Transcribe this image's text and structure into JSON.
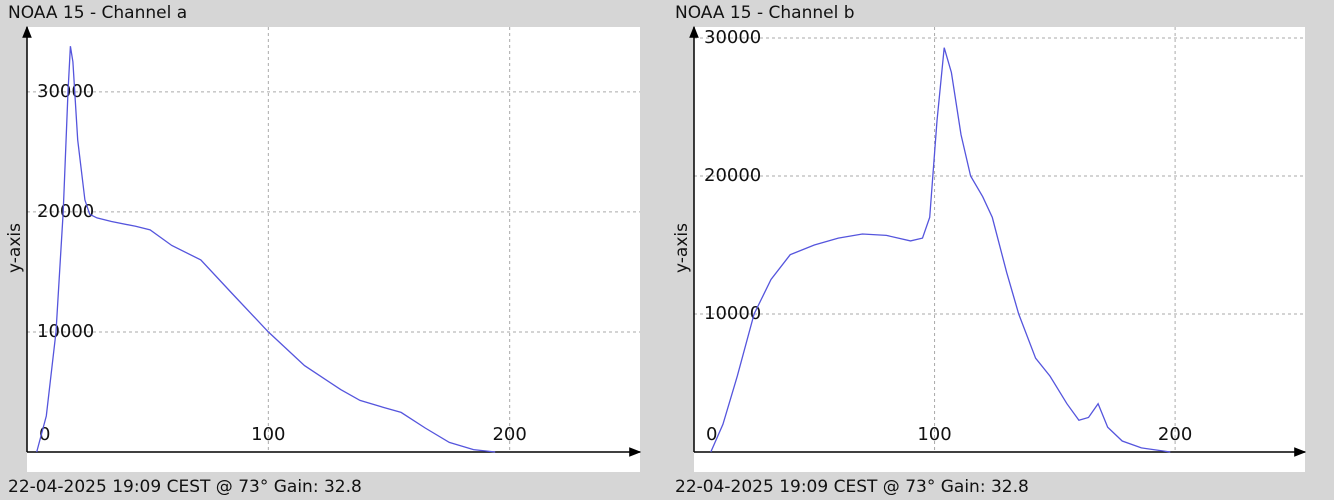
{
  "chart_data": [
    {
      "type": "line",
      "title": "NOAA 15 - Channel a",
      "y_label": "y-axis",
      "caption": "22-04-2025 19:09 CEST @ 73° Gain: 32.8",
      "color": "#5555dd",
      "grid": true,
      "x": [
        4,
        8,
        12,
        15,
        17,
        18,
        19,
        21,
        24,
        26,
        29,
        35,
        45,
        51,
        60,
        72,
        85,
        100,
        115,
        130,
        138,
        148,
        155,
        165,
        175,
        185,
        194
      ],
      "values": [
        0,
        3000,
        10000,
        20000,
        30000,
        33800,
        32500,
        26000,
        21000,
        19800,
        19500,
        19200,
        18800,
        18500,
        17200,
        16000,
        13200,
        10000,
        7200,
        5200,
        4300,
        3700,
        3300,
        2000,
        800,
        200,
        0
      ],
      "xlim": [
        0,
        254
      ],
      "ylim": [
        0,
        35400
      ],
      "xticks": [
        0,
        100,
        200
      ],
      "yticks": [
        10000,
        20000,
        30000
      ]
    },
    {
      "type": "line",
      "title": "NOAA 15 - Channel b",
      "y_label": "y-axis",
      "caption": "22-04-2025 19:09 CEST @ 73° Gain: 32.8",
      "color": "#5555dd",
      "grid": true,
      "x": [
        7,
        12,
        18,
        25,
        32,
        40,
        50,
        60,
        70,
        80,
        90,
        95,
        98,
        101,
        104,
        107,
        111,
        115,
        120,
        124,
        130,
        135,
        142,
        148,
        155,
        160,
        164,
        168,
        172,
        178,
        186,
        198
      ],
      "values": [
        0,
        2000,
        5500,
        10000,
        12500,
        14300,
        15000,
        15500,
        15800,
        15700,
        15300,
        15500,
        17000,
        24000,
        29300,
        27500,
        23000,
        20000,
        18500,
        17000,
        13000,
        10000,
        6800,
        5500,
        3500,
        2300,
        2500,
        3500,
        1800,
        800,
        300,
        0
      ],
      "xlim": [
        0,
        254
      ],
      "ylim": [
        0,
        30800
      ],
      "xticks": [
        0,
        100,
        200
      ],
      "yticks": [
        10000,
        20000,
        30000
      ]
    }
  ]
}
